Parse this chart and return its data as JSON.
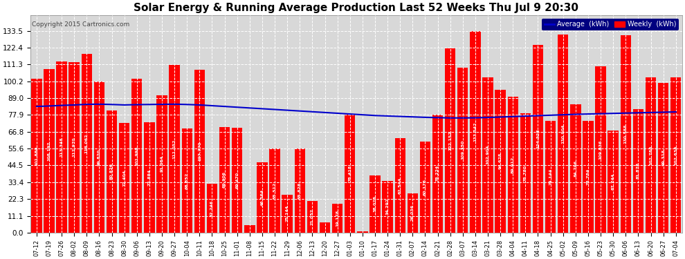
{
  "title": "Solar Energy & Running Average Production Last 52 Weeks Thu Jul 9 20:30",
  "copyright": "Copyright 2015 Cartronics.com",
  "legend_labels": [
    "Average  (kWh)",
    "Weekly  (kWh)"
  ],
  "legend_colors": [
    "#0000cc",
    "#ff0000"
  ],
  "bar_color": "#ff0000",
  "line_color": "#0000cc",
  "background_color": "#ffffff",
  "plot_bg_color": "#d8d8d8",
  "grid_color": "#ffffff",
  "yticks": [
    0.0,
    11.1,
    22.3,
    33.4,
    44.5,
    55.6,
    66.8,
    77.9,
    89.0,
    100.2,
    111.3,
    122.4,
    133.5
  ],
  "categories": [
    "07-12",
    "07-19",
    "07-26",
    "08-02",
    "08-09",
    "08-16",
    "08-23",
    "08-30",
    "09-06",
    "09-13",
    "09-20",
    "09-27",
    "10-04",
    "10-11",
    "10-18",
    "10-25",
    "11-01",
    "11-08",
    "11-15",
    "11-22",
    "11-29",
    "12-06",
    "12-13",
    "12-20",
    "12-27",
    "01-03",
    "01-10",
    "01-17",
    "01-24",
    "01-31",
    "02-07",
    "02-14",
    "02-21",
    "02-28",
    "03-07",
    "03-14",
    "03-21",
    "03-28",
    "04-04",
    "04-11",
    "04-18",
    "04-25",
    "05-02",
    "05-09",
    "05-16",
    "05-23",
    "05-30",
    "06-06",
    "06-13",
    "06-20",
    "06-27",
    "07-04"
  ],
  "values": [
    101.88,
    108.192,
    113.348,
    112.97,
    118.062,
    99.82,
    80.826,
    72.404,
    101.998,
    72.884,
    91.064,
    111.052,
    68.852,
    107.77,
    32.246,
    69.906,
    69.47,
    4.9,
    46.564,
    55.512,
    25.144,
    55.828,
    21.052,
    6.808,
    19.178,
    78.418,
    1.03,
    38.026,
    34.292,
    62.544,
    26.036,
    60.176,
    78.224,
    122.152,
    109.35,
    133.542,
    102.904,
    94.628,
    89.912,
    78.78,
    124.328,
    74.144,
    130.904,
    84.796,
    73.784,
    109.936,
    67.744,
    130.588,
    81.878,
    102.786,
    99.318,
    102.634
  ],
  "averages": [
    83.5,
    83.8,
    84.2,
    84.5,
    84.9,
    85.0,
    84.8,
    84.5,
    84.7,
    84.8,
    84.9,
    85.0,
    84.8,
    84.5,
    84.0,
    83.5,
    83.0,
    82.5,
    82.0,
    81.5,
    81.0,
    80.5,
    80.0,
    79.5,
    79.0,
    78.5,
    78.0,
    77.5,
    77.2,
    76.9,
    76.6,
    76.3,
    76.1,
    75.9,
    75.9,
    76.0,
    76.2,
    76.5,
    76.8,
    77.1,
    77.4,
    77.7,
    78.0,
    78.3,
    78.5,
    78.7,
    78.9,
    79.1,
    79.3,
    79.5,
    79.7,
    79.9
  ]
}
